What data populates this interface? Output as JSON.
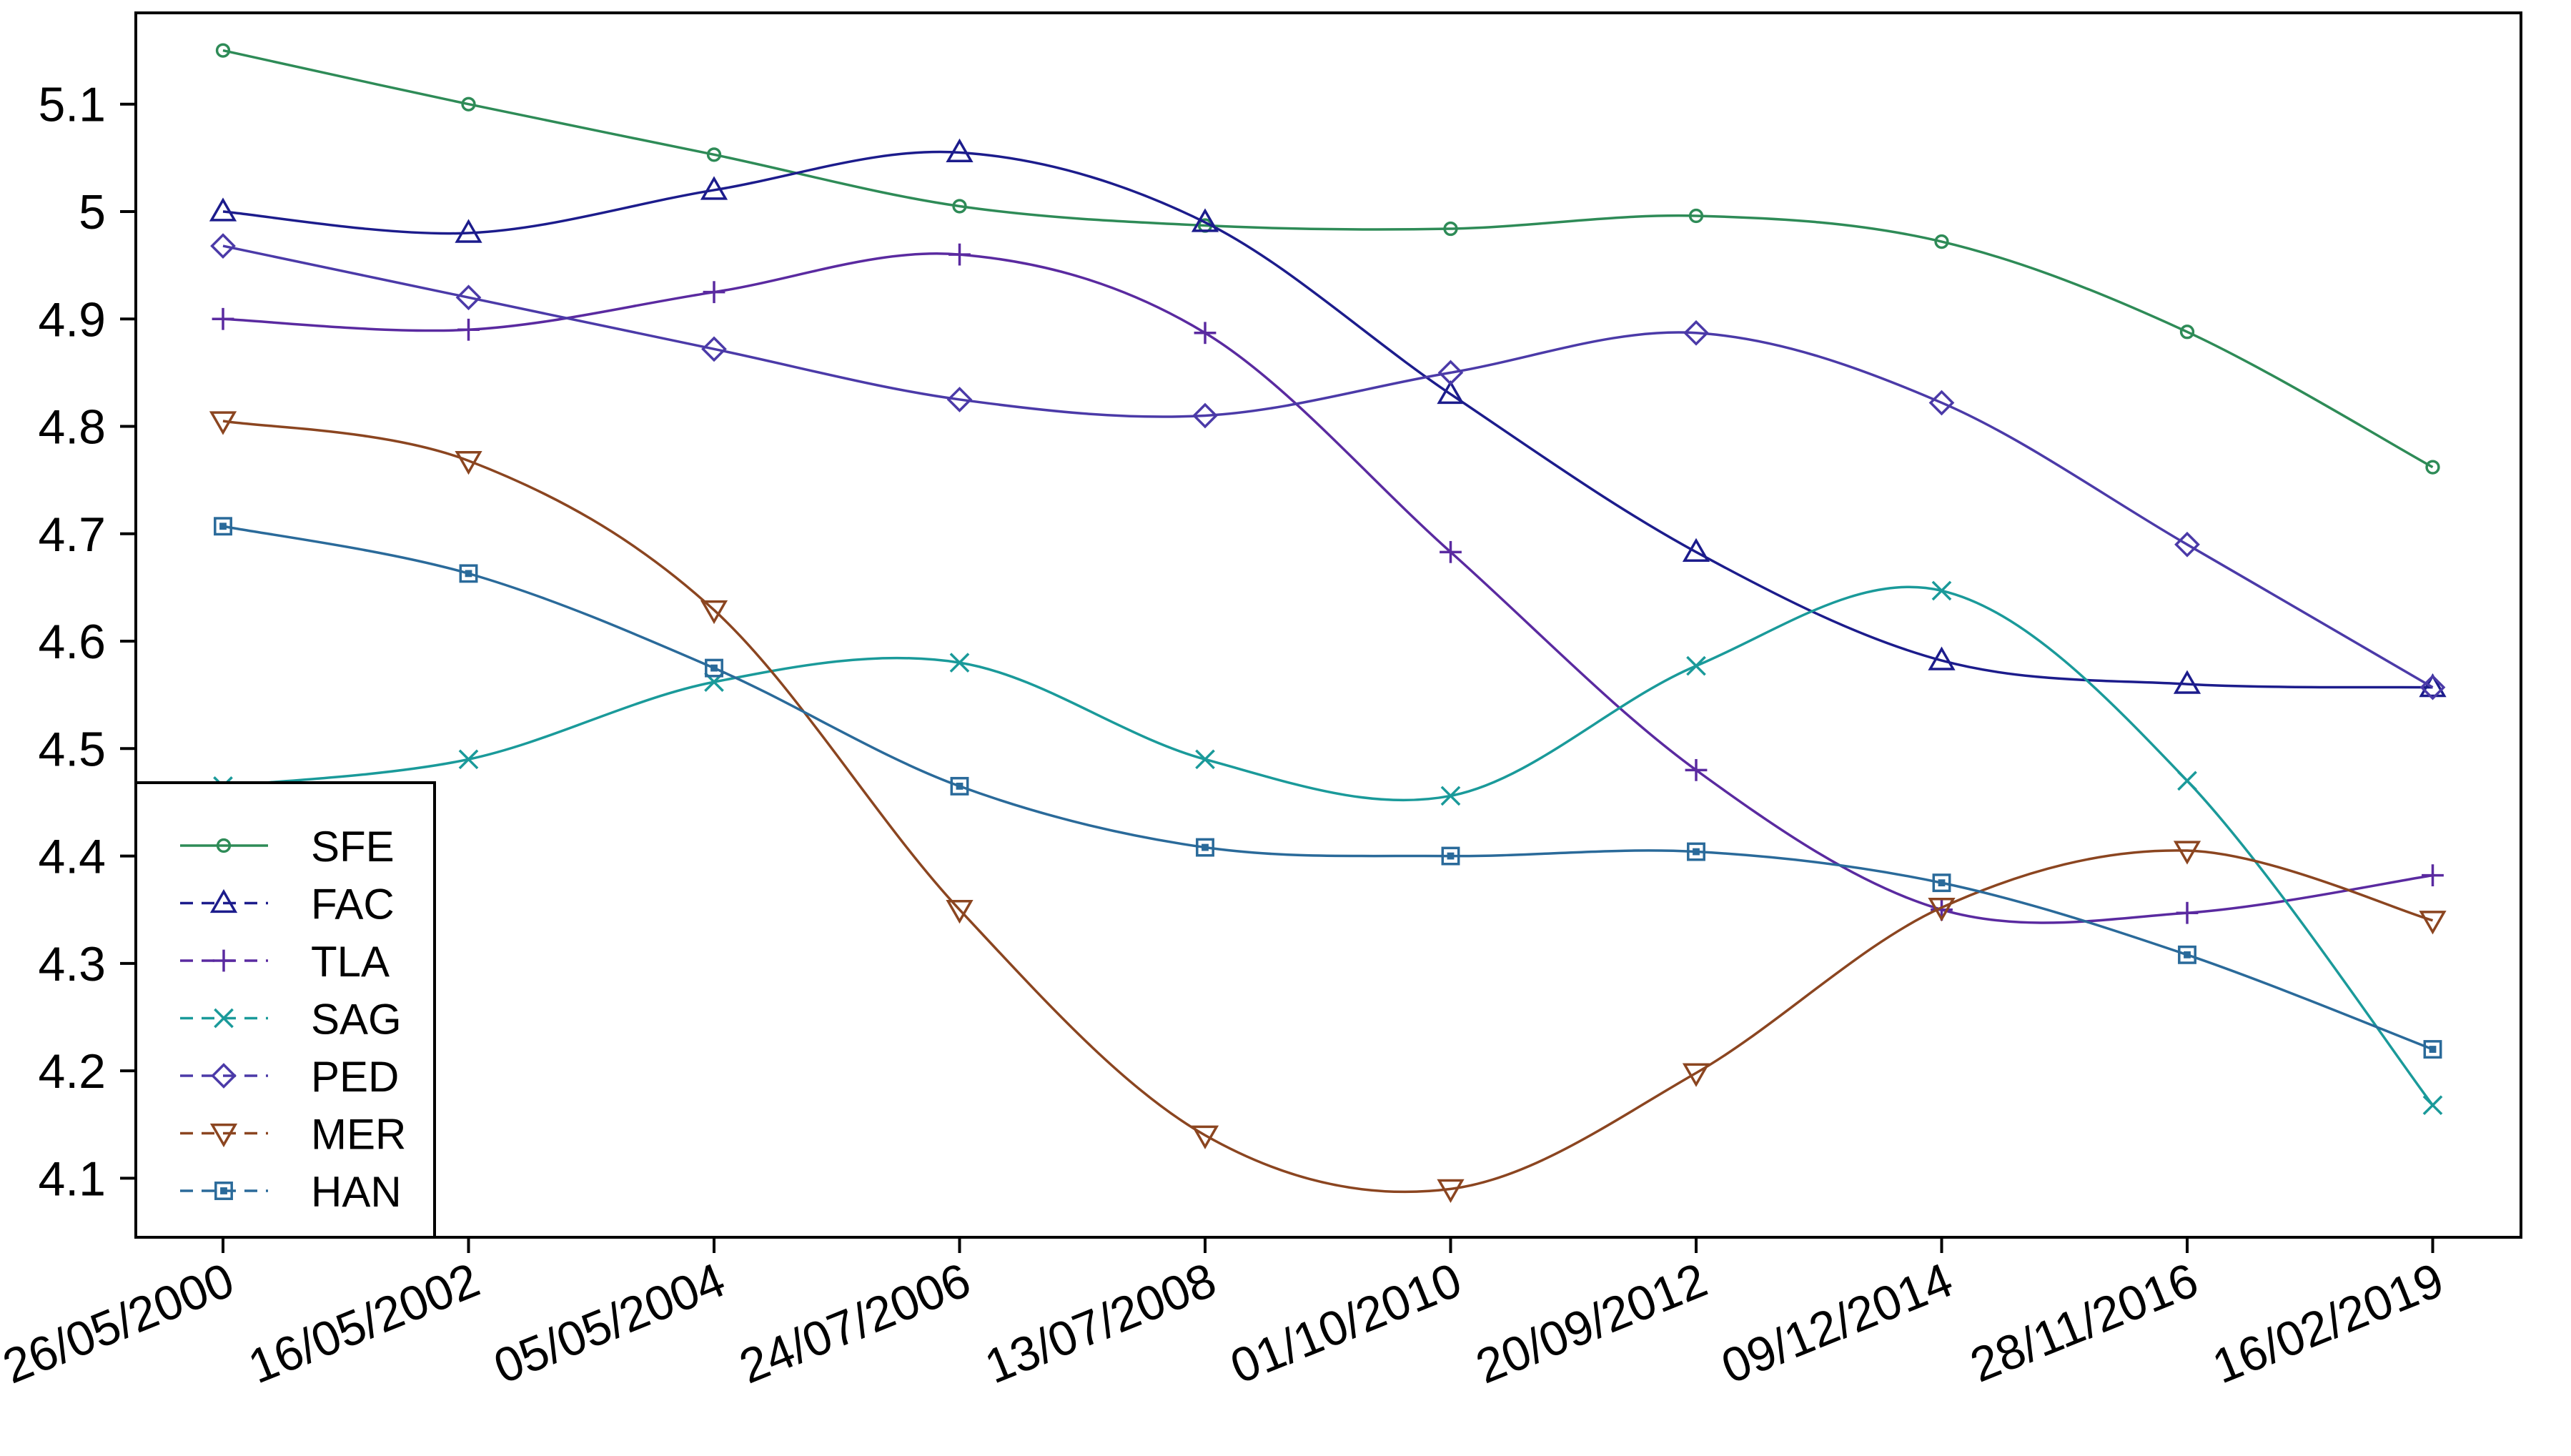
{
  "chart_data": {
    "type": "line",
    "title": "",
    "xlabel": "",
    "ylabel": "",
    "x": [
      "26/05/2000",
      "16/05/2002",
      "05/05/2004",
      "24/07/2006",
      "13/07/2008",
      "01/10/2010",
      "20/09/2012",
      "09/12/2014",
      "28/11/2016",
      "16/02/2019"
    ],
    "ylim": [
      4.045,
      5.185
    ],
    "yticks": [
      4.1,
      4.2,
      4.3,
      4.4,
      4.5,
      4.6,
      4.7,
      4.8,
      4.9,
      5,
      5.1
    ],
    "ytick_labels": [
      "4.1",
      "4.2",
      "4.3",
      "4.4",
      "4.5",
      "4.6",
      "4.7",
      "4.8",
      "4.9",
      "5",
      "5.1"
    ],
    "grid": false,
    "legend_position": "bottom-left",
    "series": [
      {
        "name": "SFE",
        "marker": "circle",
        "color": "#2e8b57",
        "values": [
          5.15,
          5.1,
          5.053,
          5.005,
          4.987,
          4.984,
          4.996,
          4.972,
          4.888,
          4.762
        ]
      },
      {
        "name": "FAC",
        "marker": "triangle-up",
        "color": "#1c1c8c",
        "values": [
          5.0,
          4.98,
          5.02,
          5.055,
          4.99,
          4.83,
          4.683,
          4.582,
          4.56,
          4.557
        ]
      },
      {
        "name": "TLA",
        "marker": "plus",
        "color": "#5a2aa0",
        "values": [
          4.9,
          4.89,
          4.925,
          4.96,
          4.887,
          4.683,
          4.48,
          4.35,
          4.347,
          4.382
        ]
      },
      {
        "name": "SAG",
        "marker": "x",
        "color": "#1a9a9a",
        "values": [
          4.465,
          4.49,
          4.562,
          4.58,
          4.49,
          4.456,
          4.577,
          4.647,
          4.47,
          4.168
        ]
      },
      {
        "name": "PED",
        "marker": "diamond",
        "color": "#4b3aa8",
        "values": [
          4.968,
          4.92,
          4.872,
          4.825,
          4.81,
          4.85,
          4.887,
          4.822,
          4.69,
          4.557
        ]
      },
      {
        "name": "MER",
        "marker": "triangle-down",
        "color": "#8b4520",
        "values": [
          4.805,
          4.768,
          4.629,
          4.35,
          4.14,
          4.09,
          4.198,
          4.352,
          4.405,
          4.34
        ]
      },
      {
        "name": "HAN",
        "marker": "square",
        "color": "#2a6a9a",
        "values": [
          4.707,
          4.663,
          4.575,
          4.465,
          4.408,
          4.4,
          4.404,
          4.375,
          4.308,
          4.22
        ]
      }
    ]
  }
}
